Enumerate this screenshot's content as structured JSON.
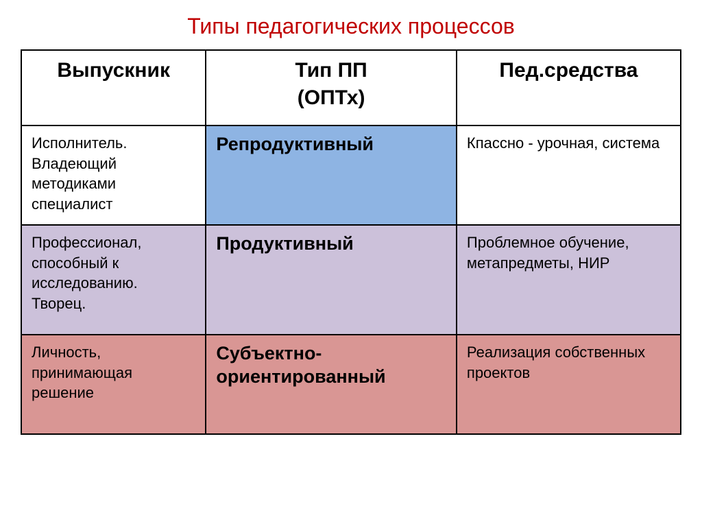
{
  "title": "Типы педагогических процессов",
  "title_color": "#c00000",
  "table": {
    "border_color": "#000000",
    "columns": [
      {
        "label": "Выпускник",
        "sublabel": ""
      },
      {
        "label": "Тип ПП",
        "sublabel": "(ОПТх)"
      },
      {
        "label": "Пед.средства",
        "sublabel": ""
      }
    ],
    "rows": [
      {
        "desc": "Исполнитель. Владеющий методиками специалист",
        "type": "Репродуктивный",
        "means": "Кпассно - урочная, система",
        "colors": {
          "c0": "#ffffff",
          "c1": "#8eb4e3",
          "c2": "#ffffff"
        }
      },
      {
        "desc": "Профессионал, способный к исследованию. Творец.",
        "type": "Продуктивный",
        "means": "Проблемное обучение, метапредметы, НИР",
        "colors": {
          "c0": "#ccc1da",
          "c1": "#ccc1da",
          "c2": "#ccc1da"
        }
      },
      {
        "desc": "Личность, принимающая решение",
        "type": "Субъектно-ориентированный",
        "means": "Реализация собственных проектов",
        "colors": {
          "c0": "#d99694",
          "c1": "#d99694",
          "c2": "#d99694"
        }
      }
    ]
  }
}
